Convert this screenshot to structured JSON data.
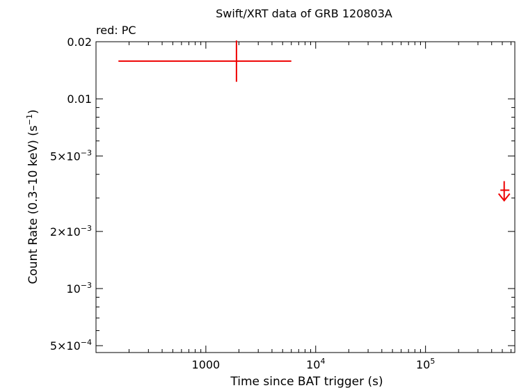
{
  "chart_data": {
    "type": "scatter",
    "title": "Swift/XRT data of GRB 120803A",
    "legend_note": "red: PC",
    "xlabel": "Time since BAT trigger (s)",
    "ylabel_main": "Count Rate (0.3–10 keV) (s",
    "ylabel_sup": "−1",
    "ylabel_end": ")",
    "x_scale": "log",
    "y_scale": "log",
    "xlim": [
      100,
      650000
    ],
    "ylim": [
      0.00046,
      0.02
    ],
    "grid": false,
    "x_ticks": [
      {
        "value": 1000,
        "base": "1000",
        "sup": ""
      },
      {
        "value": 10000,
        "base": "10",
        "sup": "4"
      },
      {
        "value": 100000,
        "base": "10",
        "sup": "5"
      }
    ],
    "y_ticks": [
      {
        "value": 0.02,
        "base": "0.02",
        "sup": ""
      },
      {
        "value": 0.01,
        "base": "0.01",
        "sup": ""
      },
      {
        "value": 0.005,
        "base": "5×10",
        "sup": "−3"
      },
      {
        "value": 0.002,
        "base": "2×10",
        "sup": "−3"
      },
      {
        "value": 0.001,
        "base": "10",
        "sup": "−3"
      },
      {
        "value": 0.0005,
        "base": "5×10",
        "sup": "−4"
      }
    ],
    "series": [
      {
        "mode": "PC",
        "color": "#ee0000",
        "points": [
          {
            "x": 1900,
            "x_low": 160,
            "x_high": 6000,
            "y": 0.0158,
            "y_low": 0.0123,
            "y_high": 0.0203
          }
        ],
        "upper_limits": [
          {
            "x": 520000,
            "x_low": 480000,
            "x_high": 580000,
            "y": 0.0033
          }
        ]
      }
    ]
  }
}
